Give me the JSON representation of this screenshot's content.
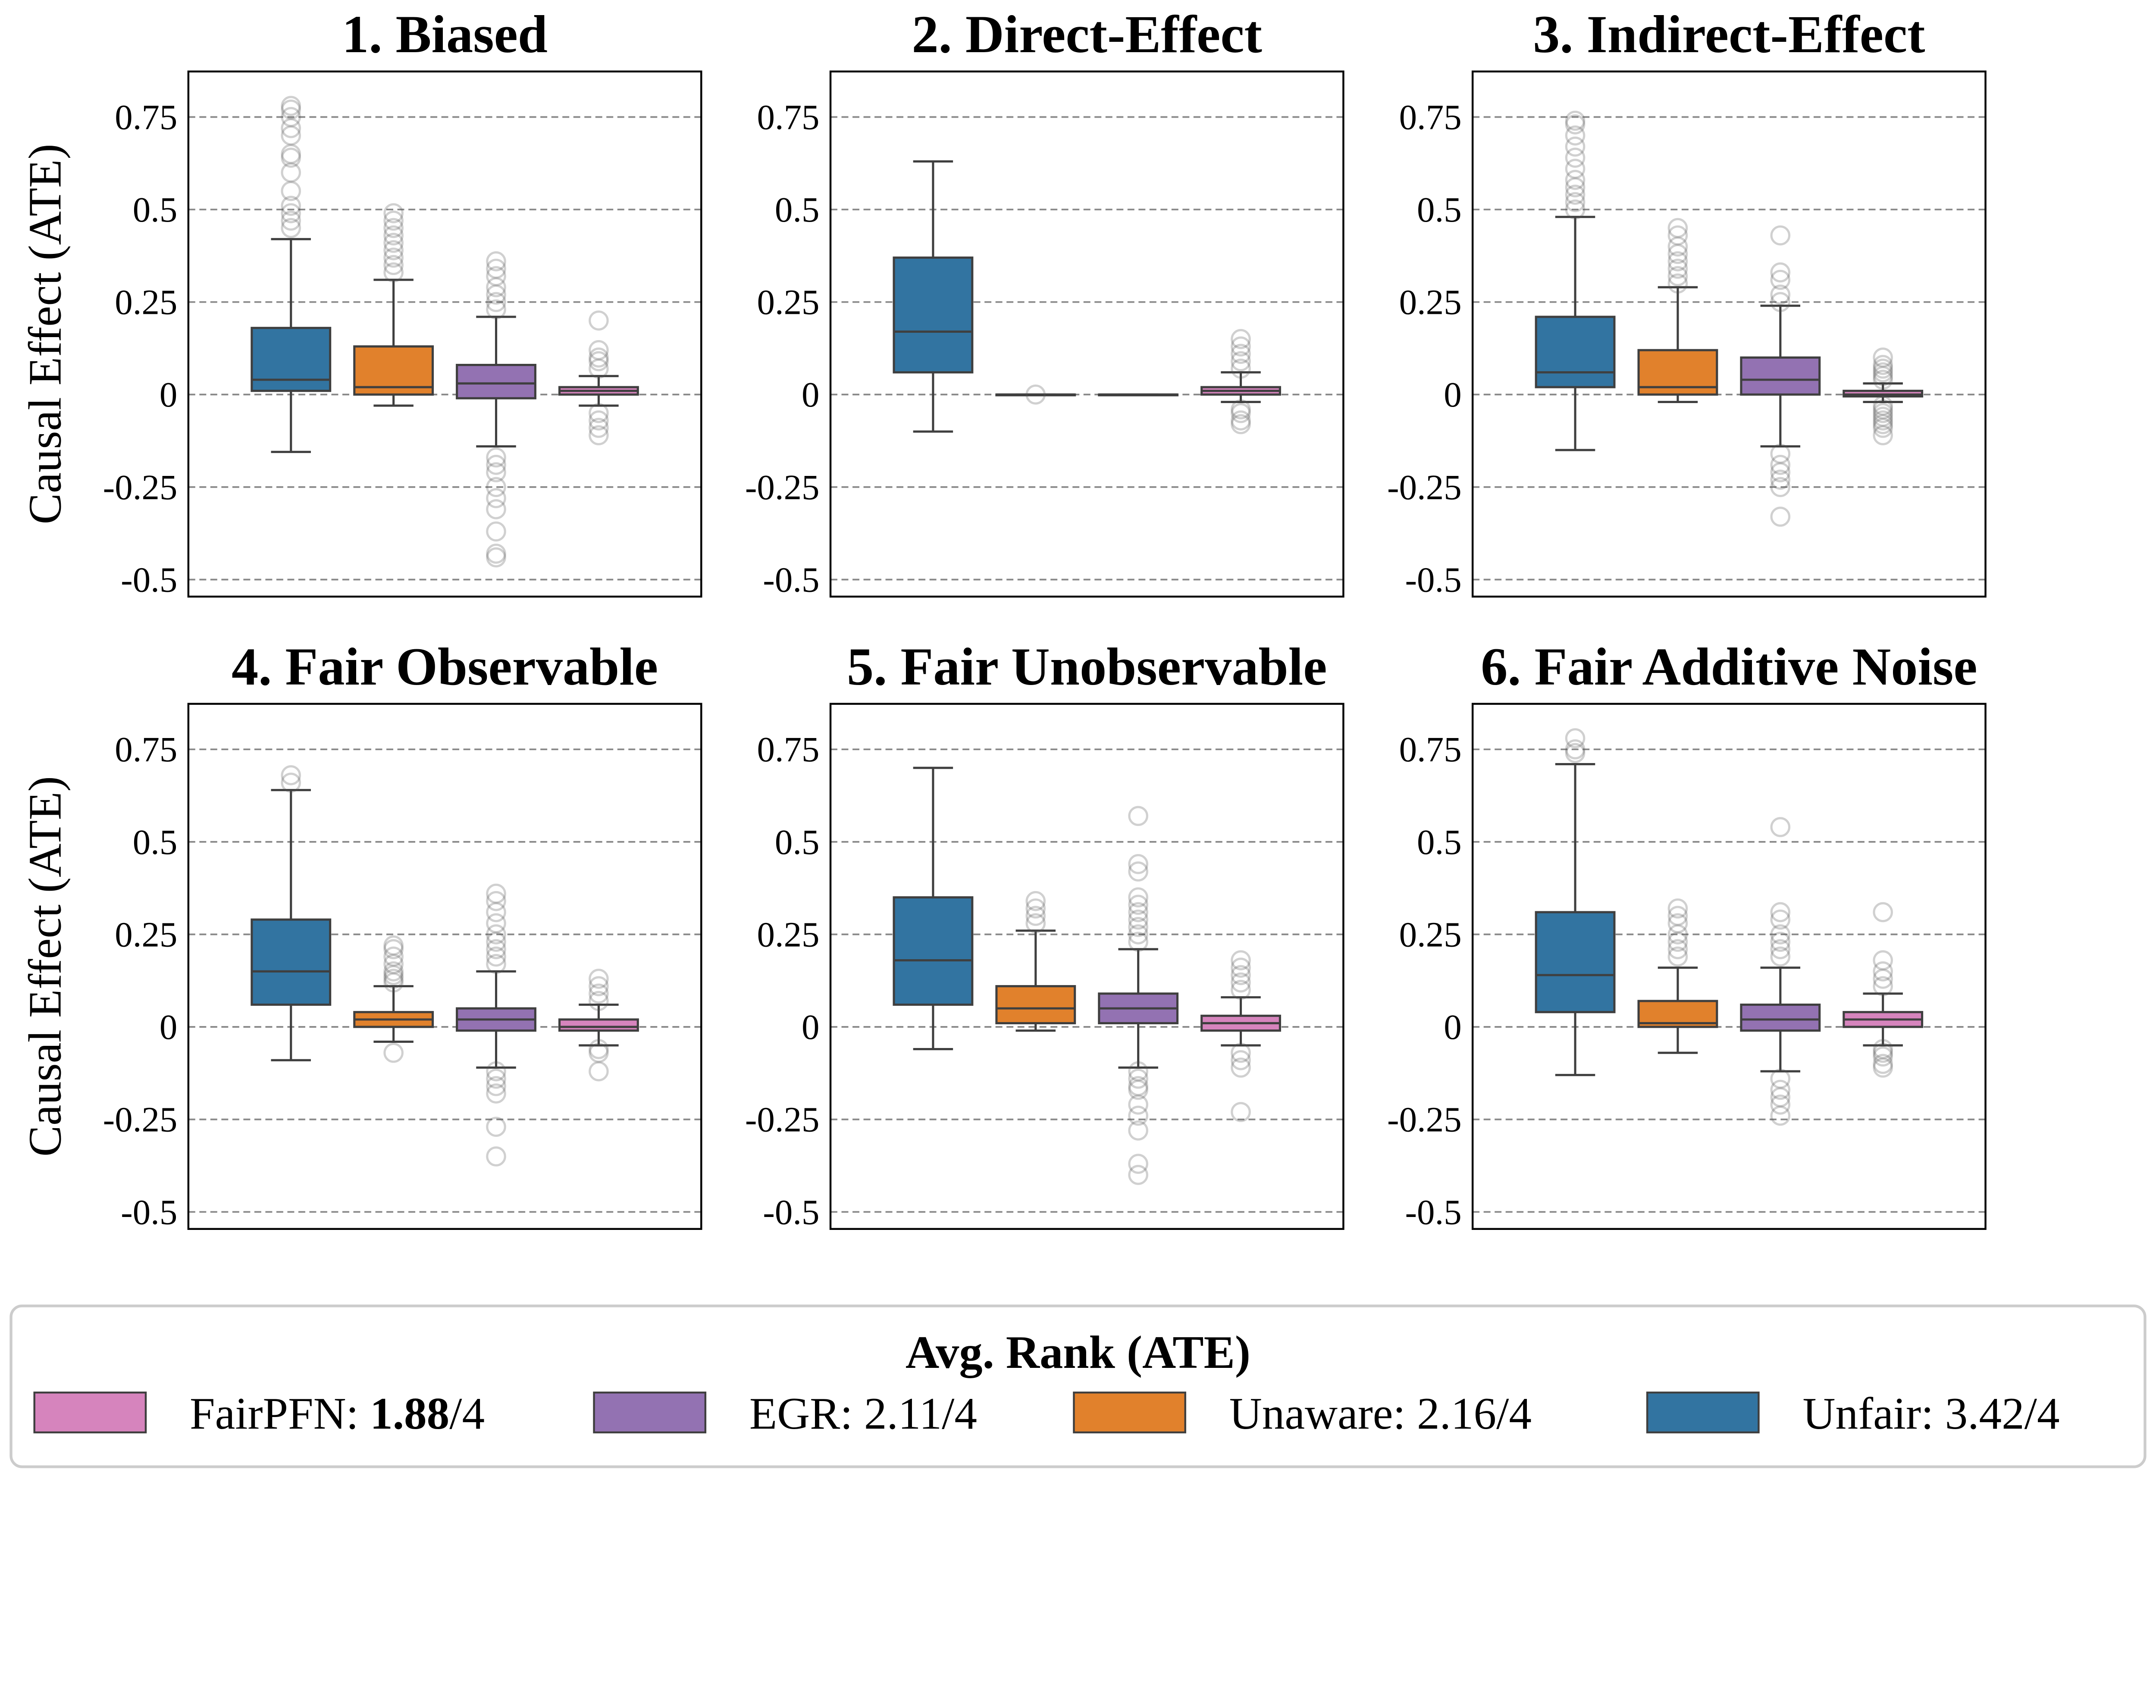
{
  "chart_data": {
    "type": "box",
    "ylabel": "Causal Effect (ATE)",
    "ylim": [
      -0.546,
      0.873
    ],
    "yticks": [
      0.75,
      0.5,
      0.25,
      0,
      -0.25,
      -0.5
    ],
    "ytick_labels": [
      "0.75",
      "0.5",
      "0.25",
      "0",
      "-0.25",
      "-0.5"
    ],
    "grid": "horizontal dashed",
    "categories": [
      "Unfair",
      "Unaware",
      "EGR",
      "FairPFN"
    ],
    "colors": {
      "Unfair": "#3274a1",
      "Unaware": "#e1812c",
      "EGR": "#9372b2",
      "FairPFN": "#d684bd"
    },
    "edge_color": "#3f3f3f",
    "panels": [
      {
        "title": "1. Biased",
        "boxes": [
          {
            "whislo": -0.155,
            "q1": 0.01,
            "med": 0.04,
            "q3": 0.18,
            "whishi": 0.42,
            "fliers": [
              0.45,
              0.47,
              0.49,
              0.51,
              0.55,
              0.6,
              0.64,
              0.65,
              0.7,
              0.72,
              0.75,
              0.77,
              0.78
            ]
          },
          {
            "whislo": -0.03,
            "q1": 0.0,
            "med": 0.02,
            "q3": 0.13,
            "whishi": 0.31,
            "fliers": [
              0.33,
              0.35,
              0.37,
              0.39,
              0.41,
              0.43,
              0.45,
              0.47,
              0.49
            ]
          },
          {
            "whislo": -0.14,
            "q1": -0.01,
            "med": 0.03,
            "q3": 0.08,
            "whishi": 0.21,
            "fliers": [
              0.23,
              0.25,
              0.27,
              0.29,
              0.32,
              0.34,
              0.36,
              -0.17,
              -0.19,
              -0.21,
              -0.25,
              -0.28,
              -0.31,
              -0.37,
              -0.43,
              -0.44
            ]
          },
          {
            "whislo": -0.03,
            "q1": 0.0,
            "med": 0.01,
            "q3": 0.02,
            "whishi": 0.05,
            "fliers": [
              0.07,
              0.09,
              0.1,
              0.12,
              0.2,
              -0.05,
              -0.07,
              -0.09,
              -0.11
            ]
          }
        ]
      },
      {
        "title": "2. Direct-Effect",
        "boxes": [
          {
            "whislo": -0.1,
            "q1": 0.06,
            "med": 0.17,
            "q3": 0.37,
            "whishi": 0.63,
            "fliers": []
          },
          {
            "whislo": 0,
            "q1": 0,
            "med": 0,
            "q3": 0,
            "whishi": 0,
            "fliers": [
              0.0
            ]
          },
          {
            "whislo": 0,
            "q1": 0,
            "med": 0,
            "q3": 0,
            "whishi": 0,
            "fliers": []
          },
          {
            "whislo": -0.02,
            "q1": 0.0,
            "med": 0.01,
            "q3": 0.02,
            "whishi": 0.06,
            "fliers": [
              0.07,
              0.09,
              0.11,
              0.13,
              0.15,
              -0.04,
              -0.05,
              -0.07,
              -0.08
            ]
          }
        ]
      },
      {
        "title": "3. Indirect-Effect",
        "boxes": [
          {
            "whislo": -0.15,
            "q1": 0.02,
            "med": 0.06,
            "q3": 0.21,
            "whishi": 0.48,
            "fliers": [
              0.5,
              0.52,
              0.54,
              0.56,
              0.58,
              0.61,
              0.64,
              0.67,
              0.7,
              0.73,
              0.74
            ]
          },
          {
            "whislo": -0.02,
            "q1": 0.0,
            "med": 0.02,
            "q3": 0.12,
            "whishi": 0.29,
            "fliers": [
              0.3,
              0.32,
              0.34,
              0.36,
              0.38,
              0.4,
              0.43,
              0.45
            ]
          },
          {
            "whislo": -0.14,
            "q1": 0.0,
            "med": 0.04,
            "q3": 0.1,
            "whishi": 0.24,
            "fliers": [
              0.25,
              0.27,
              0.31,
              0.33,
              0.43,
              -0.16,
              -0.19,
              -0.21,
              -0.23,
              -0.25,
              -0.33
            ]
          },
          {
            "whislo": -0.02,
            "q1": -0.005,
            "med": 0.0,
            "q3": 0.01,
            "whishi": 0.03,
            "fliers": [
              0.04,
              0.05,
              0.06,
              0.07,
              0.08,
              0.1,
              -0.03,
              -0.04,
              -0.05,
              -0.06,
              -0.07,
              -0.08,
              -0.09,
              -0.11
            ]
          }
        ]
      },
      {
        "title": "4. Fair Observable",
        "boxes": [
          {
            "whislo": -0.09,
            "q1": 0.06,
            "med": 0.15,
            "q3": 0.29,
            "whishi": 0.64,
            "fliers": [
              0.66,
              0.68
            ]
          },
          {
            "whislo": -0.04,
            "q1": 0.0,
            "med": 0.02,
            "q3": 0.04,
            "whishi": 0.11,
            "fliers": [
              0.12,
              0.13,
              0.14,
              0.15,
              0.17,
              0.19,
              0.21,
              0.22,
              -0.07
            ]
          },
          {
            "whislo": -0.11,
            "q1": -0.01,
            "med": 0.02,
            "q3": 0.05,
            "whishi": 0.15,
            "fliers": [
              0.17,
              0.19,
              0.21,
              0.23,
              0.25,
              0.28,
              0.31,
              0.34,
              0.36,
              -0.12,
              -0.14,
              -0.16,
              -0.18,
              -0.27,
              -0.35
            ]
          },
          {
            "whislo": -0.05,
            "q1": -0.01,
            "med": 0.0,
            "q3": 0.02,
            "whishi": 0.06,
            "fliers": [
              0.07,
              0.09,
              0.11,
              0.13,
              -0.06,
              -0.07,
              -0.12
            ]
          }
        ]
      },
      {
        "title": "5. Fair Unobservable",
        "boxes": [
          {
            "whislo": -0.06,
            "q1": 0.06,
            "med": 0.18,
            "q3": 0.35,
            "whishi": 0.7,
            "fliers": []
          },
          {
            "whislo": -0.01,
            "q1": 0.01,
            "med": 0.05,
            "q3": 0.11,
            "whishi": 0.26,
            "fliers": [
              0.28,
              0.3,
              0.32,
              0.34
            ]
          },
          {
            "whislo": -0.11,
            "q1": 0.01,
            "med": 0.05,
            "q3": 0.09,
            "whishi": 0.21,
            "fliers": [
              0.23,
              0.25,
              0.27,
              0.29,
              0.31,
              0.33,
              0.35,
              0.42,
              0.44,
              0.57,
              -0.12,
              -0.14,
              -0.16,
              -0.17,
              -0.21,
              -0.24,
              -0.28,
              -0.37,
              -0.4
            ]
          },
          {
            "whislo": -0.05,
            "q1": -0.01,
            "med": 0.01,
            "q3": 0.03,
            "whishi": 0.08,
            "fliers": [
              0.1,
              0.12,
              0.14,
              0.16,
              0.18,
              -0.07,
              -0.09,
              -0.11,
              -0.23
            ]
          }
        ]
      },
      {
        "title": "6. Fair Additive Noise",
        "boxes": [
          {
            "whislo": -0.13,
            "q1": 0.04,
            "med": 0.14,
            "q3": 0.31,
            "whishi": 0.71,
            "fliers": [
              0.74,
              0.75,
              0.78
            ]
          },
          {
            "whislo": -0.07,
            "q1": 0.0,
            "med": 0.01,
            "q3": 0.07,
            "whishi": 0.16,
            "fliers": [
              0.19,
              0.21,
              0.23,
              0.25,
              0.28,
              0.3,
              0.32
            ]
          },
          {
            "whislo": -0.12,
            "q1": -0.01,
            "med": 0.02,
            "q3": 0.06,
            "whishi": 0.16,
            "fliers": [
              0.19,
              0.21,
              0.23,
              0.25,
              0.29,
              0.31,
              0.54,
              -0.14,
              -0.17,
              -0.19,
              -0.21,
              -0.24
            ]
          },
          {
            "whislo": -0.05,
            "q1": 0.0,
            "med": 0.02,
            "q3": 0.04,
            "whishi": 0.09,
            "fliers": [
              0.11,
              0.13,
              0.15,
              0.18,
              0.31,
              -0.06,
              -0.07,
              -0.08,
              -0.1,
              -0.11
            ]
          }
        ]
      }
    ],
    "legend": {
      "title": "Avg. Rank (ATE)",
      "placement": "bottom",
      "entries": [
        {
          "name": "FairPFN: ",
          "value": "1.88",
          "suffix": "/4",
          "bold_value": true,
          "color": "#d684bd"
        },
        {
          "name": "EGR: ",
          "value": "2.11",
          "suffix": "/4",
          "bold_value": false,
          "color": "#9372b2"
        },
        {
          "name": "Unaware: ",
          "value": "2.16",
          "suffix": "/4",
          "bold_value": false,
          "color": "#e1812c"
        },
        {
          "name": "Unfair: ",
          "value": "3.42",
          "suffix": "/4",
          "bold_value": false,
          "color": "#3274a1"
        }
      ]
    }
  }
}
